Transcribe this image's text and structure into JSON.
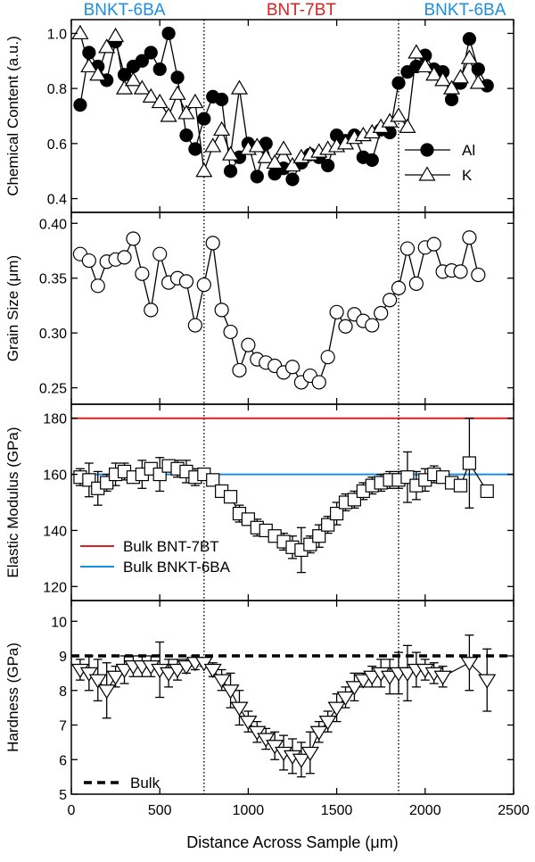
{
  "region_labels": [
    {
      "text": "BNKT-6BA",
      "color": "#1a8fe0",
      "x": 300
    },
    {
      "text": "BNT-7BT",
      "color": "#e02020",
      "x": 1300
    },
    {
      "text": "BNKT-6BA",
      "color": "#1a8fe0",
      "x": 2225
    }
  ],
  "boundaries": [
    750,
    1850
  ],
  "x_axis": {
    "label": "Distance Across Sample (μm)",
    "min": 0,
    "max": 2500,
    "ticks": [
      0,
      500,
      1000,
      1500,
      2000,
      2500
    ]
  },
  "chart_data": [
    {
      "type": "line",
      "ylabel": "Chemical Content (a.u.)",
      "ylim": [
        0.35,
        1.05
      ],
      "yticks": [
        0.4,
        0.6,
        0.8,
        1.0
      ],
      "ytick_labels": [
        "0.4",
        "0.6",
        "0.8",
        "1.0"
      ],
      "legend": "right",
      "series": [
        {
          "name": "Al",
          "marker": "circle-filled",
          "x": [
            50,
            100,
            150,
            200,
            250,
            300,
            350,
            400,
            450,
            500,
            550,
            600,
            650,
            700,
            750,
            800,
            850,
            900,
            950,
            1000,
            1050,
            1100,
            1150,
            1200,
            1250,
            1300,
            1350,
            1400,
            1450,
            1500,
            1550,
            1600,
            1650,
            1700,
            1750,
            1800,
            1850,
            1900,
            1950,
            2000,
            2050,
            2100,
            2150,
            2200,
            2250,
            2300,
            2350
          ],
          "y": [
            0.74,
            0.93,
            0.88,
            0.83,
            0.97,
            0.85,
            0.88,
            0.9,
            0.93,
            0.87,
            1.0,
            0.84,
            0.63,
            0.58,
            0.69,
            0.77,
            0.76,
            0.5,
            0.55,
            0.6,
            0.48,
            0.6,
            0.49,
            0.51,
            0.47,
            0.53,
            0.56,
            0.55,
            0.52,
            0.63,
            0.61,
            0.63,
            0.55,
            0.54,
            0.65,
            0.64,
            0.82,
            0.86,
            0.88,
            0.92,
            0.87,
            0.86,
            0.76,
            0.82,
            0.98,
            0.87,
            0.81
          ]
        },
        {
          "name": "K",
          "marker": "triangle-up-open",
          "x": [
            50,
            100,
            150,
            200,
            250,
            300,
            350,
            400,
            450,
            500,
            550,
            600,
            650,
            700,
            750,
            800,
            850,
            900,
            950,
            1000,
            1050,
            1100,
            1150,
            1200,
            1250,
            1300,
            1350,
            1400,
            1450,
            1500,
            1550,
            1600,
            1650,
            1700,
            1750,
            1800,
            1850,
            1900,
            1950,
            2000,
            2050,
            2100,
            2150,
            2200,
            2250,
            2300
          ],
          "y": [
            1.0,
            0.88,
            0.85,
            0.95,
            0.99,
            0.8,
            0.83,
            0.8,
            0.77,
            0.75,
            0.7,
            0.78,
            0.71,
            0.75,
            0.5,
            0.59,
            0.65,
            0.56,
            0.8,
            0.58,
            0.59,
            0.55,
            0.53,
            0.58,
            0.52,
            0.55,
            0.56,
            0.57,
            0.58,
            0.59,
            0.6,
            0.62,
            0.63,
            0.64,
            0.66,
            0.68,
            0.7,
            0.66,
            0.93,
            0.88,
            0.85,
            0.83,
            0.8,
            0.84,
            0.91,
            0.82
          ]
        }
      ]
    },
    {
      "type": "line",
      "ylabel": "Grain Size (μm)",
      "ylim": [
        0.235,
        0.41
      ],
      "yticks": [
        0.25,
        0.3,
        0.35,
        0.4
      ],
      "ytick_labels": [
        "0.25",
        "0.30",
        "0.35",
        "0.40"
      ],
      "series": [
        {
          "name": "",
          "marker": "circle-open",
          "x": [
            50,
            100,
            150,
            200,
            250,
            300,
            350,
            400,
            450,
            500,
            550,
            600,
            650,
            700,
            750,
            800,
            850,
            900,
            950,
            1000,
            1050,
            1100,
            1150,
            1200,
            1250,
            1300,
            1350,
            1400,
            1450,
            1500,
            1550,
            1600,
            1650,
            1700,
            1750,
            1800,
            1850,
            1900,
            1950,
            2000,
            2050,
            2100,
            2150,
            2200,
            2250,
            2300
          ],
          "y": [
            0.372,
            0.366,
            0.343,
            0.365,
            0.367,
            0.369,
            0.386,
            0.354,
            0.321,
            0.372,
            0.346,
            0.35,
            0.347,
            0.307,
            0.344,
            0.382,
            0.321,
            0.301,
            0.266,
            0.289,
            0.276,
            0.273,
            0.27,
            0.264,
            0.269,
            0.255,
            0.261,
            0.255,
            0.278,
            0.319,
            0.306,
            0.317,
            0.311,
            0.307,
            0.318,
            0.33,
            0.341,
            0.377,
            0.345,
            0.378,
            0.381,
            0.356,
            0.357,
            0.356,
            0.387,
            0.353
          ]
        }
      ]
    },
    {
      "type": "scatter",
      "ylabel": "Elastic Modulus (GPa)",
      "ylim": [
        115,
        185
      ],
      "yticks": [
        120,
        140,
        160,
        180
      ],
      "ytick_labels": [
        "120",
        "140",
        "160",
        "180"
      ],
      "legend": "bottom-left",
      "reference_lines": [
        {
          "name": "Bulk BNT-7BT",
          "value": 180,
          "color": "#e02020"
        },
        {
          "name": "Bulk BNKT-6BA",
          "value": 160,
          "color": "#1a8fe0"
        }
      ],
      "series": [
        {
          "name": "",
          "marker": "square-open",
          "x": [
            50,
            100,
            150,
            200,
            250,
            300,
            350,
            400,
            450,
            500,
            550,
            600,
            650,
            700,
            750,
            800,
            850,
            900,
            950,
            1000,
            1050,
            1100,
            1150,
            1200,
            1250,
            1300,
            1350,
            1400,
            1450,
            1500,
            1550,
            1600,
            1650,
            1700,
            1750,
            1800,
            1850,
            1900,
            1950,
            2000,
            2050,
            2100,
            2150,
            2200,
            2250,
            2350
          ],
          "y": [
            159,
            158,
            155,
            157,
            160,
            161,
            159,
            160,
            162,
            160,
            163,
            162,
            161,
            159,
            160,
            158,
            154,
            152,
            146,
            144,
            141,
            140,
            138,
            136,
            134,
            133,
            135,
            138,
            142,
            146,
            150,
            151,
            154,
            156,
            157,
            158,
            158,
            159,
            156,
            158,
            160,
            159,
            157,
            156,
            164,
            154
          ],
          "err": [
            3,
            6,
            6,
            3,
            4,
            3,
            2,
            5,
            2,
            6,
            2,
            3,
            4,
            3,
            2,
            2,
            2,
            2,
            3,
            2,
            3,
            2,
            2,
            3,
            4,
            8,
            3,
            4,
            3,
            4,
            3,
            3,
            3,
            3,
            3,
            3,
            3,
            9,
            5,
            4,
            3,
            2,
            2,
            2,
            16,
            0
          ]
        }
      ]
    },
    {
      "type": "scatter",
      "ylabel": "Hardness (GPa)",
      "ylim": [
        5,
        10.6
      ],
      "yticks": [
        5,
        6,
        7,
        8,
        9,
        10
      ],
      "ytick_labels": [
        "5",
        "6",
        "7",
        "8",
        "9",
        "10"
      ],
      "legend": "bottom-left",
      "reference_lines": [
        {
          "name": "Bulk",
          "value": 9.0,
          "color": "#000000",
          "dash": true
        }
      ],
      "series": [
        {
          "name": "",
          "marker": "triangle-down-open",
          "x": [
            50,
            100,
            150,
            200,
            250,
            300,
            350,
            400,
            450,
            500,
            550,
            600,
            650,
            700,
            750,
            800,
            850,
            900,
            950,
            1000,
            1050,
            1100,
            1150,
            1200,
            1250,
            1300,
            1350,
            1400,
            1450,
            1500,
            1550,
            1600,
            1650,
            1700,
            1750,
            1800,
            1850,
            1900,
            1950,
            2000,
            2050,
            2100,
            2250,
            2350
          ],
          "y": [
            8.6,
            8.5,
            8.3,
            8.0,
            8.4,
            8.6,
            8.7,
            8.7,
            8.7,
            8.6,
            8.5,
            8.6,
            8.7,
            8.8,
            8.8,
            8.6,
            8.3,
            8.0,
            7.5,
            7.1,
            6.8,
            6.6,
            6.4,
            6.2,
            6.1,
            6.0,
            6.2,
            6.8,
            7.1,
            7.5,
            7.8,
            8.1,
            8.3,
            8.4,
            8.5,
            8.4,
            8.5,
            8.5,
            8.6,
            8.6,
            8.5,
            8.4,
            8.8,
            8.3
          ],
          "err": [
            0.3,
            0.5,
            0.6,
            0.8,
            0.3,
            0.4,
            0.3,
            0.3,
            0.3,
            0.8,
            0.4,
            0.3,
            0.2,
            0.2,
            0.1,
            0.2,
            0.3,
            0.5,
            0.5,
            0.3,
            0.3,
            0.3,
            0.4,
            0.5,
            0.5,
            0.5,
            0.6,
            0.3,
            0.3,
            0.4,
            0.3,
            0.4,
            0.2,
            0.3,
            0.4,
            0.5,
            0.6,
            0.8,
            0.5,
            0.3,
            0.3,
            0.3,
            0.8,
            0.9
          ]
        }
      ]
    }
  ]
}
